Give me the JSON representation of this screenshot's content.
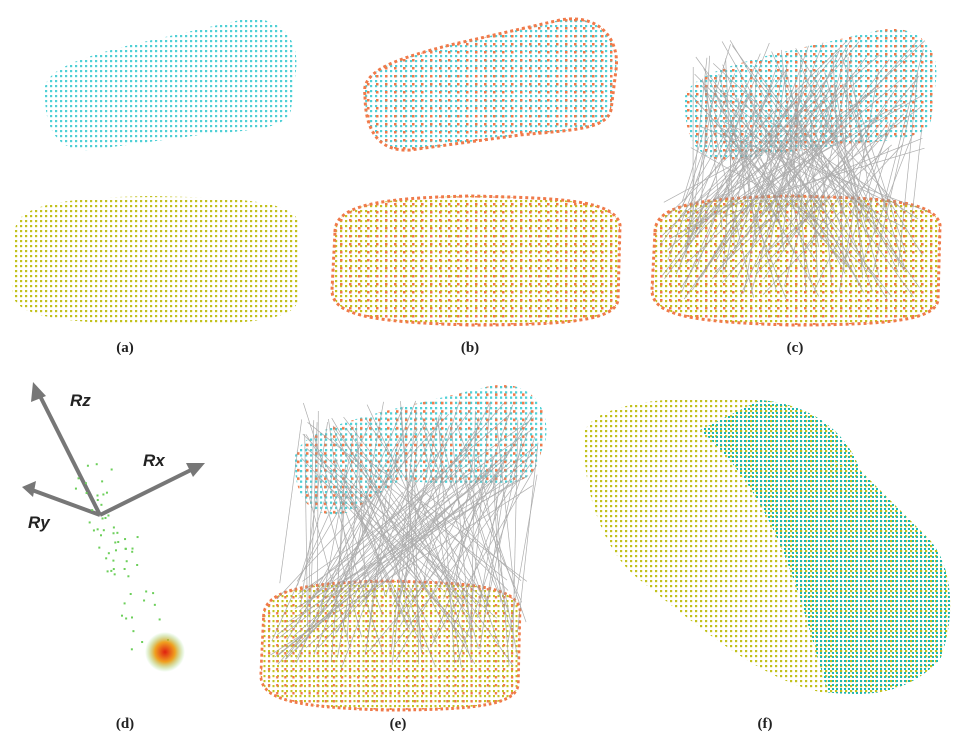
{
  "panels": [
    {
      "label": "(a)"
    },
    {
      "label": "(b)"
    },
    {
      "label": "(c)"
    },
    {
      "label": "(d)"
    },
    {
      "label": "(e)"
    },
    {
      "label": "(f)"
    }
  ],
  "axes": {
    "rz": "Rz",
    "rx": "Rx",
    "ry": "Ry"
  }
}
